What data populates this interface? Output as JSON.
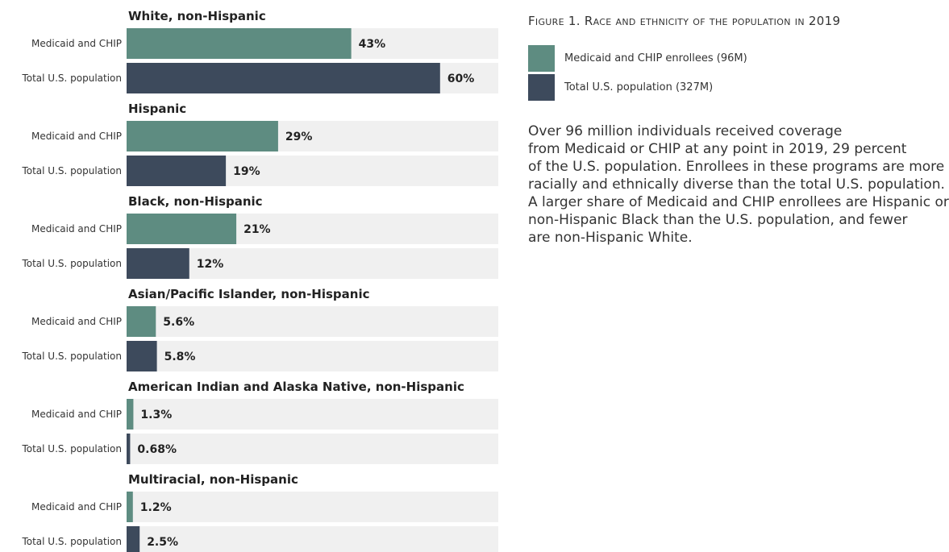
{
  "chart_data": {
    "type": "bar",
    "orientation": "horizontal",
    "title": "Figure 1. Race and ethnicity of the population in 2019",
    "xlim": [
      0,
      100
    ],
    "value_suffix": "%",
    "grid": false,
    "legend_position": "top-right",
    "series": [
      {
        "name": "Medicaid and CHIP enrollees (96M)",
        "row_label": "Medicaid and CHIP",
        "color": "#5e8c81"
      },
      {
        "name": "Total U.S. population (327M)",
        "row_label": "Total U.S. population",
        "color": "#3d4a5c"
      }
    ],
    "groups": [
      {
        "name": "White, non-Hispanic",
        "values": [
          43,
          60
        ],
        "labels": [
          "43%",
          "60%"
        ]
      },
      {
        "name": "Hispanic",
        "values": [
          29,
          19
        ],
        "labels": [
          "29%",
          "19%"
        ]
      },
      {
        "name": "Black, non-Hispanic",
        "values": [
          21,
          12
        ],
        "labels": [
          "21%",
          "12%"
        ]
      },
      {
        "name": "Asian/Pacific Islander, non-Hispanic",
        "values": [
          5.6,
          5.8
        ],
        "labels": [
          "5.6%",
          "5.8%"
        ]
      },
      {
        "name": "American Indian and Alaska Native, non-Hispanic",
        "values": [
          1.3,
          0.68
        ],
        "labels": [
          "1.3%",
          "0.68%"
        ]
      },
      {
        "name": "Multiracial, non-Hispanic",
        "values": [
          1.2,
          2.5
        ],
        "labels": [
          "1.2%",
          "2.5%"
        ]
      }
    ],
    "track_color": "#f0f0f0"
  },
  "figure": {
    "title": "Figure 1. Race and ethnicity of the population in 2019",
    "legend": [
      {
        "label": "Medicaid and CHIP enrollees (96M)",
        "color": "#5e8c81"
      },
      {
        "label": "Total U.S. population (327M)",
        "color": "#3d4a5c"
      }
    ],
    "description_lines": [
      "Over 96 million individuals received coverage",
      "from Medicaid or CHIP at any point in 2019, 29 percent",
      "of the U.S. population. Enrollees in these programs are more",
      "racially and ethnically diverse than the total U.S. population.",
      "A larger share of Medicaid and CHIP enrollees are Hispanic or",
      "non-Hispanic Black than the U.S. population, and fewer",
      "are non-Hispanic White."
    ]
  }
}
